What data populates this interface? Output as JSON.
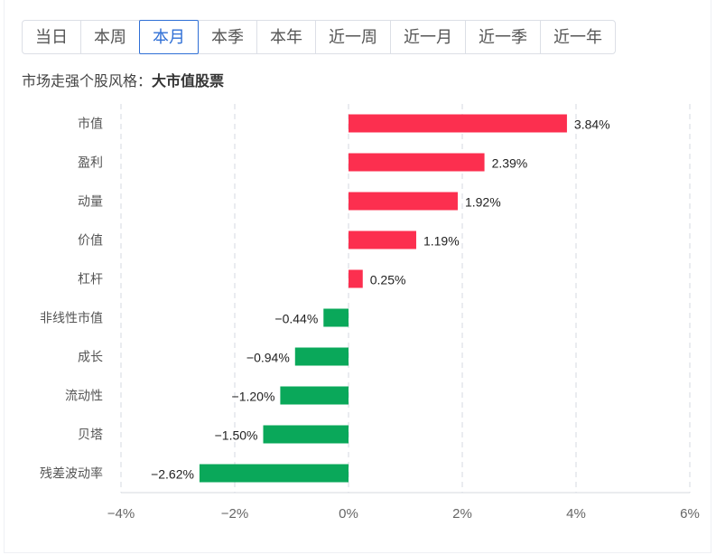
{
  "tabs": [
    {
      "label": "当日"
    },
    {
      "label": "本周"
    },
    {
      "label": "本月",
      "active": true
    },
    {
      "label": "本季"
    },
    {
      "label": "本年"
    },
    {
      "label": "近一周"
    },
    {
      "label": "近一月"
    },
    {
      "label": "近一季"
    },
    {
      "label": "近一年"
    }
  ],
  "subtitle": {
    "prefix": "市场走强个股风格：",
    "value": "大市值股票"
  },
  "colors": {
    "positive": "#fc2f4f",
    "negative": "#0aa85a",
    "grid": "#e3e6ec",
    "axis_text": "#666666"
  },
  "chart_data": {
    "type": "bar",
    "orientation": "horizontal",
    "categories": [
      "市值",
      "盈利",
      "动量",
      "价值",
      "杠杆",
      "非线性市值",
      "成长",
      "流动性",
      "贝塔",
      "残差波动率"
    ],
    "values": [
      3.84,
      2.39,
      1.92,
      1.19,
      0.25,
      -0.44,
      -0.94,
      -1.2,
      -1.5,
      -2.62
    ],
    "data_labels": [
      "3.84%",
      "2.39%",
      "1.92%",
      "1.19%",
      "0.25%",
      "−0.44%",
      "−0.94%",
      "−1.20%",
      "−1.50%",
      "−2.62%"
    ],
    "unit": "%",
    "xlim": [
      -4,
      6
    ],
    "xticks": [
      -4,
      -2,
      0,
      2,
      4,
      6
    ],
    "xtick_labels": [
      "−4%",
      "−2%",
      "0%",
      "2%",
      "4%",
      "6%"
    ],
    "grid": "vertical-dashed",
    "legend": "none"
  }
}
